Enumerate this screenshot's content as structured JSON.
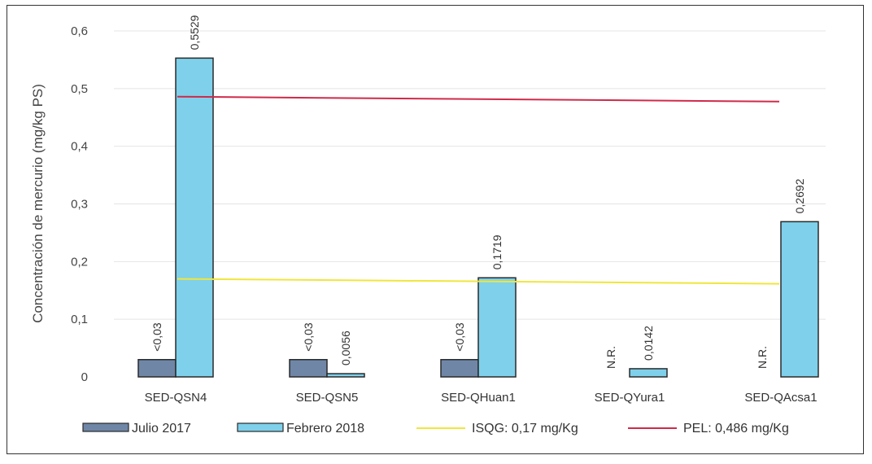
{
  "chart_data": {
    "type": "bar",
    "title": "",
    "xlabel": "",
    "ylabel": "Concentración de mercurio (mg/kg PS)",
    "ylim": [
      0,
      0.6
    ],
    "yticks": [
      {
        "value": 0,
        "label": "0"
      },
      {
        "value": 0.1,
        "label": "0,1"
      },
      {
        "value": 0.2,
        "label": "0,2"
      },
      {
        "value": 0.3,
        "label": "0,3"
      },
      {
        "value": 0.4,
        "label": "0,4"
      },
      {
        "value": 0.5,
        "label": "0,5"
      },
      {
        "value": 0.6,
        "label": "0,6"
      }
    ],
    "grid": true,
    "legend_position": "bottom",
    "categories": [
      "SED-QSN4",
      "SED-QSN5",
      "SED-QHuan1",
      "SED-QYura1",
      "SED-QAcsa1"
    ],
    "series": [
      {
        "name": "Julio 2017",
        "color": "#6f86a6",
        "values": [
          0.03,
          0.03,
          0.03,
          null,
          null
        ],
        "labels": [
          "<0,03",
          "<0,03",
          "<0,03",
          "N.R.",
          "N.R."
        ]
      },
      {
        "name": "Febrero 2018",
        "color": "#7fd0ea",
        "values": [
          0.5529,
          0.0056,
          0.1719,
          0.0142,
          0.2692
        ],
        "labels": [
          "0,5529",
          "0,0056",
          "0,1719",
          "0,0142",
          "0,2692"
        ]
      }
    ],
    "reference_lines": [
      {
        "name": "ISQG: 0,17 mg/Kg",
        "value": 0.17,
        "color": "#f0e63c"
      },
      {
        "name": "PEL: 0,486 mg/Kg",
        "value": 0.486,
        "color": "#d02a4a"
      }
    ]
  }
}
